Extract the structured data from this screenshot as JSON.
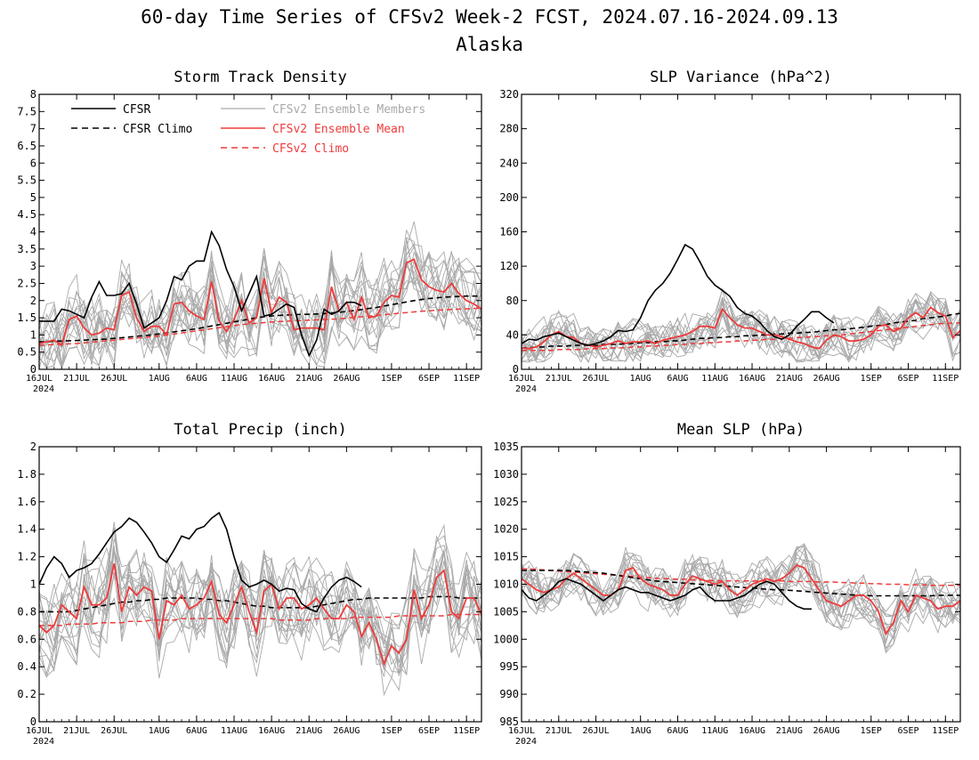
{
  "header": {
    "title": "60-day Time Series of CFSv2 Week-2 FCST, 2024.07.16-2024.09.13",
    "subtitle": "Alaska"
  },
  "colors": {
    "cfsr": "#000000",
    "ensemble_members": "#a9a9a9",
    "ensemble_mean": "#ee3b3b",
    "cfsv2_climo": "#ee3b3b"
  },
  "legend": {
    "cfsr": "CFSR",
    "cfsr_climo": "CFSR Climo",
    "members": "CFSv2 Ensemble Members",
    "ens_mean": "CFSv2 Ensemble Mean",
    "cfsv2_climo": "CFSv2 Climo"
  },
  "chart_data": [
    {
      "id": "storm",
      "type": "line",
      "title": "Storm Track Density",
      "xlabel": "",
      "ylabel": "",
      "x_range_days": [
        0,
        59
      ],
      "x_tick_labels": [
        "16JUL",
        "21JUL",
        "26JUL",
        "1AUG",
        "6AUG",
        "11AUG",
        "16AUG",
        "21AUG",
        "26AUG",
        "1SEP",
        "6SEP",
        "11SEP"
      ],
      "x_tick_days": [
        0,
        5,
        10,
        16,
        21,
        26,
        31,
        36,
        41,
        47,
        52,
        57
      ],
      "x_year_label": "2024",
      "ylim": [
        0,
        8
      ],
      "y_ticks": [
        0,
        0.5,
        1,
        1.5,
        2,
        2.5,
        3,
        3.5,
        4,
        4.5,
        5,
        5.5,
        6,
        6.5,
        7,
        7.5,
        8
      ],
      "y_tick_labels": [
        "0",
        "0.5",
        "1",
        "1.5",
        "2",
        "2.5",
        "3",
        "3.5",
        "4",
        "4.5",
        "5",
        "5.5",
        "6",
        "6.5",
        "7",
        "7.5",
        "8"
      ],
      "cfsr": [
        1.4,
        1.4,
        1.4,
        1.75,
        1.7,
        1.6,
        1.5,
        2.1,
        2.55,
        2.15,
        2.15,
        2.2,
        2.5,
        1.9,
        1.2,
        1.35,
        1.5,
        2.0,
        2.7,
        2.6,
        3.0,
        3.15,
        3.15,
        4.0,
        3.6,
        2.9,
        2.4,
        1.7,
        2.2,
        2.7,
        1.55,
        1.6,
        1.75,
        1.9,
        1.8,
        1.0,
        0.4,
        0.85,
        1.75,
        1.6,
        1.7,
        1.95,
        1.95,
        1.85
      ],
      "cfsr_climo": [
        0.8,
        0.8,
        0.82,
        0.82,
        0.83,
        0.84,
        0.85,
        0.86,
        0.87,
        0.88,
        0.9,
        0.92,
        0.94,
        0.96,
        0.98,
        1.0,
        1.03,
        1.06,
        1.09,
        1.12,
        1.15,
        1.18,
        1.22,
        1.26,
        1.3,
        1.34,
        1.38,
        1.42,
        1.46,
        1.5,
        1.53,
        1.55,
        1.57,
        1.58,
        1.59,
        1.6,
        1.6,
        1.61,
        1.62,
        1.64,
        1.66,
        1.68,
        1.71,
        1.74,
        1.77,
        1.8,
        1.84,
        1.88,
        1.92,
        1.96,
        2.0,
        2.03,
        2.06,
        2.08,
        2.1,
        2.11,
        2.12,
        2.13,
        2.13,
        2.13
      ],
      "ens_mean": [
        0.75,
        0.8,
        0.85,
        0.7,
        1.45,
        1.55,
        1.2,
        1.0,
        1.05,
        1.2,
        1.15,
        2.15,
        2.25,
        1.5,
        1.1,
        1.25,
        1.25,
        1.0,
        1.9,
        1.95,
        1.7,
        1.55,
        1.45,
        2.55,
        1.4,
        1.1,
        1.45,
        2.0,
        1.35,
        1.5,
        2.65,
        1.65,
        2.1,
        1.95,
        1.15,
        1.2,
        1.2,
        1.2,
        1.15,
        2.4,
        1.7,
        1.95,
        1.45,
        2.1,
        1.5,
        1.55,
        1.95,
        2.15,
        2.1,
        3.1,
        3.2,
        2.6,
        2.4,
        2.3,
        2.25,
        2.5,
        2.2,
        2.0,
        1.9,
        1.75
      ],
      "cfsv2_climo": [
        0.7,
        0.71,
        0.72,
        0.73,
        0.74,
        0.75,
        0.77,
        0.79,
        0.81,
        0.83,
        0.85,
        0.87,
        0.89,
        0.91,
        0.93,
        0.95,
        0.97,
        1.0,
        1.03,
        1.06,
        1.09,
        1.12,
        1.15,
        1.18,
        1.21,
        1.24,
        1.27,
        1.3,
        1.32,
        1.34,
        1.36,
        1.38,
        1.39,
        1.4,
        1.41,
        1.42,
        1.43,
        1.44,
        1.45,
        1.46,
        1.47,
        1.49,
        1.51,
        1.53,
        1.55,
        1.57,
        1.59,
        1.61,
        1.63,
        1.65,
        1.67,
        1.69,
        1.7,
        1.72,
        1.73,
        1.74,
        1.75,
        1.76,
        1.77,
        1.78
      ],
      "members": {
        "count": 16,
        "base": "ens_mean",
        "spread": 1.35,
        "min": 0
      }
    },
    {
      "id": "slpvar",
      "type": "line",
      "title": "SLP Variance (hPa^2)",
      "xlabel": "",
      "ylabel": "",
      "x_range_days": [
        0,
        59
      ],
      "x_tick_labels": [
        "16JUL",
        "21JUL",
        "26JUL",
        "1AUG",
        "6AUG",
        "11AUG",
        "16AUG",
        "21AUG",
        "26AUG",
        "1SEP",
        "6SEP",
        "11SEP"
      ],
      "x_tick_days": [
        0,
        5,
        10,
        16,
        21,
        26,
        31,
        36,
        41,
        47,
        52,
        57
      ],
      "x_year_label": "2024",
      "ylim": [
        0,
        320
      ],
      "y_ticks": [
        0,
        40,
        80,
        120,
        160,
        200,
        240,
        280,
        320
      ],
      "y_tick_labels": [
        "0",
        "40",
        "80",
        "120",
        "160",
        "200",
        "240",
        "280",
        "320"
      ],
      "cfsr": [
        30,
        35,
        34,
        38,
        40,
        42,
        38,
        34,
        30,
        28,
        30,
        33,
        38,
        45,
        44,
        46,
        60,
        80,
        92,
        100,
        112,
        128,
        145,
        140,
        125,
        108,
        98,
        92,
        85,
        72,
        65,
        62,
        55,
        45,
        38,
        35,
        40,
        50,
        58,
        67,
        67,
        60,
        54
      ],
      "cfsr_climo": [
        25,
        25,
        26,
        26,
        27,
        27,
        27,
        28,
        28,
        28,
        28,
        29,
        29,
        29,
        30,
        30,
        31,
        31,
        32,
        32,
        33,
        33,
        34,
        35,
        36,
        36,
        37,
        37,
        38,
        38,
        39,
        39,
        40,
        40,
        41,
        41,
        42,
        42,
        43,
        43,
        44,
        45,
        46,
        46,
        47,
        48,
        49,
        50,
        51,
        52,
        54,
        55,
        56,
        57,
        59,
        60,
        61,
        62,
        64,
        65
      ],
      "ens_mean": [
        25,
        24,
        26,
        32,
        40,
        44,
        38,
        37,
        30,
        28,
        26,
        28,
        30,
        33,
        30,
        32,
        32,
        33,
        30,
        34,
        36,
        38,
        40,
        44,
        50,
        50,
        48,
        70,
        60,
        52,
        48,
        48,
        44,
        40,
        40,
        38,
        35,
        32,
        30,
        26,
        24,
        34,
        40,
        38,
        33,
        33,
        35,
        40,
        50,
        52,
        44,
        48,
        60,
        66,
        60,
        72,
        66,
        62,
        37,
        45
      ],
      "cfsv2_climo": [
        22,
        22,
        22,
        22,
        22,
        23,
        23,
        23,
        23,
        24,
        24,
        24,
        25,
        25,
        25,
        26,
        26,
        27,
        27,
        28,
        28,
        29,
        29,
        30,
        30,
        31,
        31,
        32,
        32,
        33,
        33,
        34,
        34,
        35,
        35,
        36,
        36,
        37,
        37,
        38,
        38,
        39,
        39,
        40,
        41,
        42,
        43,
        44,
        45,
        46,
        47,
        48,
        49,
        50,
        51,
        52,
        53,
        53,
        54,
        54
      ],
      "members": {
        "count": 16,
        "base": "ens_mean",
        "spread": 30,
        "min": 8
      }
    },
    {
      "id": "precip",
      "type": "line",
      "title": "Total Precip (inch)",
      "xlabel": "",
      "ylabel": "",
      "x_range_days": [
        0,
        59
      ],
      "x_tick_labels": [
        "16JUL",
        "21JUL",
        "26JUL",
        "1AUG",
        "6AUG",
        "11AUG",
        "16AUG",
        "21AUG",
        "26AUG",
        "1SEP",
        "6SEP",
        "11SEP"
      ],
      "x_tick_days": [
        0,
        5,
        10,
        16,
        21,
        26,
        31,
        36,
        41,
        47,
        52,
        57
      ],
      "x_year_label": "2024",
      "ylim": [
        0,
        2
      ],
      "y_ticks": [
        0,
        0.2,
        0.4,
        0.6,
        0.8,
        1,
        1.2,
        1.4,
        1.6,
        1.8,
        2
      ],
      "y_tick_labels": [
        "0",
        "0.2",
        "0.4",
        "0.6",
        "0.8",
        "1",
        "1.2",
        "1.4",
        "1.6",
        "1.8",
        "2"
      ],
      "cfsr": [
        1.0,
        1.12,
        1.2,
        1.15,
        1.05,
        1.1,
        1.12,
        1.15,
        1.22,
        1.3,
        1.38,
        1.42,
        1.48,
        1.45,
        1.38,
        1.3,
        1.2,
        1.16,
        1.25,
        1.35,
        1.33,
        1.4,
        1.42,
        1.48,
        1.52,
        1.4,
        1.2,
        1.03,
        0.98,
        1.0,
        1.03,
        1.0,
        0.95,
        0.97,
        0.96,
        0.86,
        0.82,
        0.8,
        0.9,
        0.98,
        1.03,
        1.05,
        1.02,
        0.98
      ],
      "cfsr_climo": [
        0.8,
        0.8,
        0.8,
        0.8,
        0.8,
        0.81,
        0.82,
        0.83,
        0.84,
        0.85,
        0.86,
        0.87,
        0.87,
        0.88,
        0.88,
        0.89,
        0.89,
        0.9,
        0.9,
        0.9,
        0.9,
        0.9,
        0.89,
        0.89,
        0.88,
        0.88,
        0.87,
        0.86,
        0.85,
        0.84,
        0.84,
        0.83,
        0.83,
        0.83,
        0.83,
        0.83,
        0.83,
        0.84,
        0.85,
        0.86,
        0.87,
        0.88,
        0.89,
        0.89,
        0.9,
        0.9,
        0.9,
        0.9,
        0.9,
        0.9,
        0.9,
        0.9,
        0.91,
        0.91,
        0.91,
        0.91,
        0.9,
        0.9,
        0.9,
        0.9
      ],
      "ens_mean": [
        0.7,
        0.65,
        0.7,
        0.85,
        0.8,
        0.75,
        0.98,
        0.85,
        0.85,
        0.9,
        1.15,
        0.8,
        0.98,
        0.92,
        0.98,
        0.95,
        0.6,
        0.88,
        0.85,
        0.92,
        0.82,
        0.85,
        0.9,
        1.02,
        0.78,
        0.72,
        0.85,
        0.98,
        0.8,
        0.65,
        0.95,
        1.0,
        0.82,
        0.9,
        0.9,
        0.82,
        0.85,
        0.9,
        0.82,
        0.75,
        0.75,
        0.85,
        0.8,
        0.62,
        0.72,
        0.6,
        0.42,
        0.55,
        0.5,
        0.6,
        0.96,
        0.75,
        0.85,
        1.05,
        1.1,
        0.8,
        0.75,
        0.9,
        0.9,
        0.78
      ],
      "cfsv2_climo": [
        0.7,
        0.7,
        0.7,
        0.7,
        0.71,
        0.71,
        0.71,
        0.71,
        0.72,
        0.72,
        0.72,
        0.72,
        0.73,
        0.73,
        0.73,
        0.74,
        0.74,
        0.74,
        0.74,
        0.75,
        0.75,
        0.75,
        0.75,
        0.75,
        0.75,
        0.75,
        0.75,
        0.75,
        0.75,
        0.75,
        0.75,
        0.75,
        0.74,
        0.74,
        0.74,
        0.74,
        0.74,
        0.75,
        0.75,
        0.75,
        0.75,
        0.75,
        0.76,
        0.76,
        0.76,
        0.76,
        0.76,
        0.76,
        0.77,
        0.77,
        0.77,
        0.77,
        0.77,
        0.77,
        0.77,
        0.78,
        0.78,
        0.78,
        0.78,
        0.78
      ],
      "members": {
        "count": 16,
        "base": "ens_mean",
        "spread": 0.38,
        "min": 0.15
      }
    },
    {
      "id": "mslp",
      "type": "line",
      "title": "Mean SLP (hPa)",
      "xlabel": "",
      "ylabel": "",
      "x_range_days": [
        0,
        59
      ],
      "x_tick_labels": [
        "16JUL",
        "21JUL",
        "26JUL",
        "1AUG",
        "6AUG",
        "11AUG",
        "16AUG",
        "21AUG",
        "26AUG",
        "1SEP",
        "6SEP",
        "11SEP"
      ],
      "x_tick_days": [
        0,
        5,
        10,
        16,
        21,
        26,
        31,
        36,
        41,
        47,
        52,
        57
      ],
      "x_year_label": "2024",
      "ylim": [
        985,
        1035
      ],
      "y_ticks": [
        985,
        990,
        995,
        1000,
        1005,
        1010,
        1015,
        1020,
        1025,
        1030,
        1035
      ],
      "y_tick_labels": [
        "985",
        "990",
        "995",
        "1000",
        "1005",
        "1010",
        "1015",
        "1020",
        "1025",
        "1030",
        "1035"
      ],
      "cfsr": [
        1009,
        1007.5,
        1007,
        1008,
        1009,
        1010.5,
        1011,
        1010.5,
        1010,
        1009,
        1008,
        1007,
        1008,
        1009,
        1009.5,
        1009,
        1008.5,
        1008.5,
        1008,
        1007.5,
        1007,
        1007.5,
        1008,
        1009,
        1009.5,
        1008,
        1007,
        1007,
        1007,
        1007.5,
        1008,
        1009,
        1010,
        1010.5,
        1010,
        1008.5,
        1007,
        1006,
        1005.5,
        1005.5
      ],
      "cfsr_climo": [
        1012.5,
        1012.5,
        1012.5,
        1012.5,
        1012.5,
        1012.5,
        1012.5,
        1012.4,
        1012.3,
        1012.2,
        1012.1,
        1012.0,
        1011.8,
        1011.6,
        1011.4,
        1011.2,
        1011.0,
        1010.8,
        1010.6,
        1010.5,
        1010.4,
        1010.3,
        1010.2,
        1010.1,
        1010.0,
        1009.9,
        1009.8,
        1009.7,
        1009.6,
        1009.5,
        1009.4,
        1009.3,
        1009.2,
        1009.1,
        1009.0,
        1009.0,
        1008.9,
        1008.8,
        1008.7,
        1008.6,
        1008.5,
        1008.4,
        1008.3,
        1008.2,
        1008.1,
        1008.0,
        1008.0,
        1007.9,
        1007.9,
        1007.9,
        1007.9,
        1007.9,
        1007.9,
        1007.9,
        1007.9,
        1007.9,
        1008.0,
        1008.0,
        1008.0,
        1008.0
      ],
      "ens_mean": [
        1011,
        1010,
        1009,
        1008.5,
        1009,
        1009.5,
        1011,
        1012,
        1011,
        1010,
        1009,
        1008,
        1008,
        1009,
        1012.5,
        1013,
        1011,
        1010,
        1009.5,
        1009,
        1008,
        1008,
        1010,
        1011.5,
        1011,
        1010.5,
        1010,
        1010.5,
        1009,
        1008,
        1009,
        1010,
        1010.5,
        1011,
        1010.5,
        1011,
        1012,
        1013.5,
        1013,
        1011,
        1009,
        1007,
        1006.5,
        1006,
        1007,
        1008,
        1008,
        1007,
        1005,
        1001,
        1003,
        1007,
        1005,
        1008,
        1007.5,
        1007,
        1005.5,
        1006,
        1006,
        1007
      ],
      "cfsv2_climo": [
        1012.8,
        1012.8,
        1012.7,
        1012.6,
        1012.5,
        1012.4,
        1012.3,
        1012.2,
        1012.1,
        1012.0,
        1011.9,
        1011.8,
        1011.7,
        1011.6,
        1011.5,
        1011.4,
        1011.3,
        1011.2,
        1011.1,
        1011.0,
        1011.0,
        1010.9,
        1010.9,
        1010.8,
        1010.8,
        1010.7,
        1010.7,
        1010.6,
        1010.6,
        1010.6,
        1010.6,
        1010.6,
        1010.6,
        1010.6,
        1010.6,
        1010.6,
        1010.5,
        1010.5,
        1010.5,
        1010.5,
        1010.4,
        1010.4,
        1010.4,
        1010.3,
        1010.3,
        1010.2,
        1010.2,
        1010.1,
        1010.1,
        1010.0,
        1010.0,
        1010.0,
        1009.9,
        1009.9,
        1009.9,
        1009.8,
        1009.8,
        1009.8,
        1009.8,
        1009.8
      ],
      "members": {
        "count": 16,
        "base": "ens_mean",
        "spread": 5,
        "min": 985
      }
    }
  ]
}
